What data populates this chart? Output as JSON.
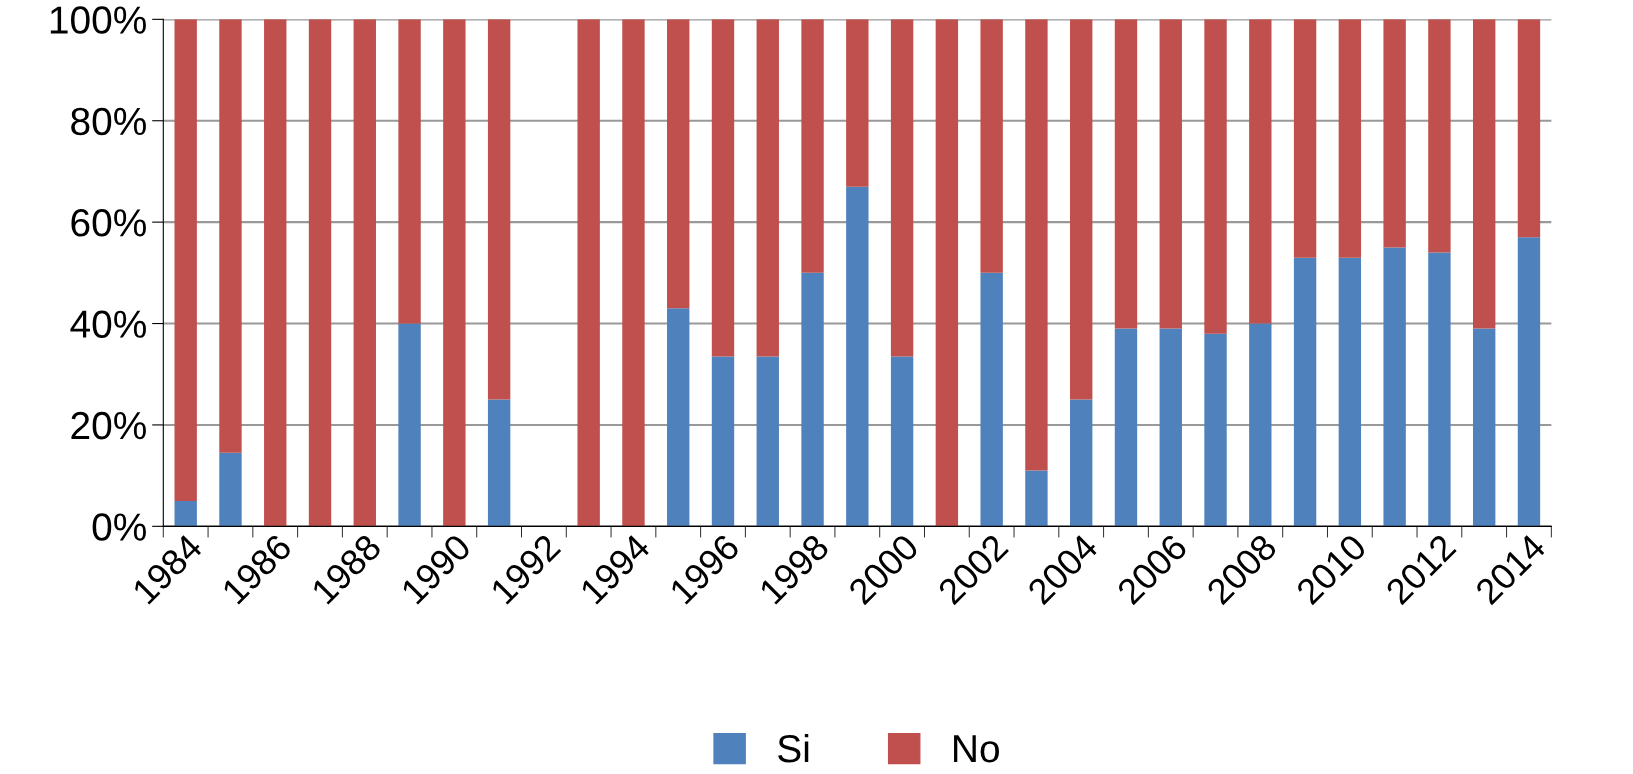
{
  "chart_data": {
    "type": "bar",
    "stacked": true,
    "categories": [
      "1984",
      null,
      "1986",
      null,
      "1988",
      null,
      "1990",
      null,
      "1992",
      null,
      "1994",
      null,
      "1996",
      null,
      "1998",
      null,
      "2000",
      null,
      "2002",
      null,
      "2004",
      null,
      "2006",
      null,
      "2008",
      null,
      "2010",
      null,
      "2012",
      null,
      "2014"
    ],
    "series": [
      {
        "name": "Si",
        "color": "#4f81bd",
        "values": [
          5,
          14.5,
          0,
          0,
          0,
          40,
          0,
          25,
          0,
          0,
          0,
          43,
          33.5,
          33.5,
          50,
          67,
          33.5,
          0,
          50,
          11,
          25,
          39,
          39,
          38,
          40,
          53,
          53,
          55,
          54,
          39,
          57
        ]
      },
      {
        "name": "No",
        "color": "#c0504d",
        "values": [
          95,
          85.5,
          100,
          100,
          100,
          60,
          100,
          75,
          0,
          100,
          100,
          57,
          66.5,
          66.5,
          50,
          33,
          66.5,
          100,
          50,
          89,
          75,
          61,
          61,
          62,
          60,
          47,
          47,
          45,
          46,
          61,
          43
        ]
      }
    ],
    "ylim": [
      0,
      100
    ],
    "yticks": [
      {
        "value": 0,
        "label": "0%"
      },
      {
        "value": 20,
        "label": "20%"
      },
      {
        "value": 40,
        "label": "40%"
      },
      {
        "value": 60,
        "label": "60%"
      },
      {
        "value": 80,
        "label": "80%"
      },
      {
        "value": 100,
        "label": "100%"
      }
    ],
    "grid": "y",
    "legend": "bottom"
  }
}
